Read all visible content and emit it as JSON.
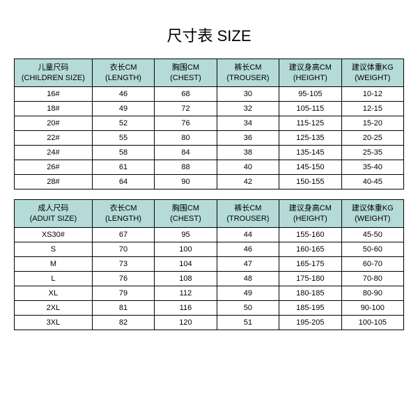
{
  "title": "尺寸表 SIZE",
  "styling": {
    "header_bg": "#b4dbd8",
    "row_bg": "#ffffff",
    "border_color": "#000000",
    "title_fontsize": 22,
    "cell_fontsize": 11
  },
  "children": {
    "columns": [
      {
        "cn": "儿童尺码",
        "en": "(CHILDREN SIZE)"
      },
      {
        "cn": "衣长CM",
        "en": "(LENGTH)"
      },
      {
        "cn": "胸围CM",
        "en": "(CHEST)"
      },
      {
        "cn": "裤长CM",
        "en": "(TROUSER)"
      },
      {
        "cn": "建议身高CM",
        "en": "(HEIGHT)"
      },
      {
        "cn": "建议体重KG",
        "en": "(WEIGHT)"
      }
    ],
    "rows": [
      [
        "16#",
        "46",
        "68",
        "30",
        "95-105",
        "10-12"
      ],
      [
        "18#",
        "49",
        "72",
        "32",
        "105-115",
        "12-15"
      ],
      [
        "20#",
        "52",
        "76",
        "34",
        "115-125",
        "15-20"
      ],
      [
        "22#",
        "55",
        "80",
        "36",
        "125-135",
        "20-25"
      ],
      [
        "24#",
        "58",
        "84",
        "38",
        "135-145",
        "25-35"
      ],
      [
        "26#",
        "61",
        "88",
        "40",
        "145-150",
        "35-40"
      ],
      [
        "28#",
        "64",
        "90",
        "42",
        "150-155",
        "40-45"
      ]
    ]
  },
  "adult": {
    "columns": [
      {
        "cn": "成人尺码",
        "en": "(ADUIT SIZE)"
      },
      {
        "cn": "衣长CM",
        "en": "(LENGTH)"
      },
      {
        "cn": "胸围CM",
        "en": "(CHEST)"
      },
      {
        "cn": "裤长CM",
        "en": "(TROUSER)"
      },
      {
        "cn": "建议身高CM",
        "en": "(HEIGHT)"
      },
      {
        "cn": "建议体重KG",
        "en": "(WEIGHT)"
      }
    ],
    "rows": [
      [
        "XS30#",
        "67",
        "95",
        "44",
        "155-160",
        "45-50"
      ],
      [
        "S",
        "70",
        "100",
        "46",
        "160-165",
        "50-60"
      ],
      [
        "M",
        "73",
        "104",
        "47",
        "165-175",
        "60-70"
      ],
      [
        "L",
        "76",
        "108",
        "48",
        "175-180",
        "70-80"
      ],
      [
        "XL",
        "79",
        "112",
        "49",
        "180-185",
        "80-90"
      ],
      [
        "2XL",
        "81",
        "116",
        "50",
        "185-195",
        "90-100"
      ],
      [
        "3XL",
        "82",
        "120",
        "51",
        "195-205",
        "100-105"
      ]
    ]
  },
  "col_widths_pct": [
    20,
    16,
    16,
    16,
    16,
    16
  ]
}
